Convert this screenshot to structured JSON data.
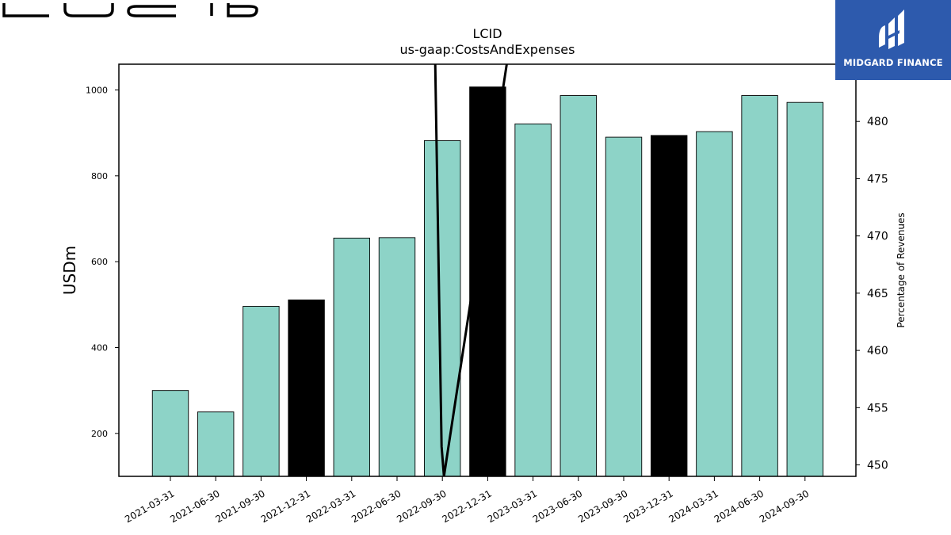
{
  "logo": {
    "company": "LUCID",
    "company_color": "#000000"
  },
  "brand": {
    "name": "MIDGARD FINANCE",
    "icon": "midgard-finance-logo-icon",
    "bg_color": "#2d5aad"
  },
  "chart_data": {
    "type": "bar",
    "title": "LCID",
    "subtitle": "us-gaap:CostsAndExpenses",
    "ylabel": "USDm",
    "y2label": "Percentage of Revenues",
    "ylim": [
      100,
      1060
    ],
    "yticks": [
      200,
      400,
      600,
      800,
      1000
    ],
    "y2lim": [
      449,
      485
    ],
    "y2ticks": [
      450,
      455,
      460,
      465,
      470,
      475,
      480
    ],
    "grid": false,
    "categories": [
      "2021-03-31",
      "2021-06-30",
      "2021-09-30",
      "2021-12-31",
      "2022-03-31",
      "2022-06-30",
      "2022-09-30",
      "2022-12-31",
      "2023-03-31",
      "2023-06-30",
      "2023-09-30",
      "2023-12-31",
      "2024-03-31",
      "2024-06-30",
      "2024-09-30"
    ],
    "values": [
      300,
      250,
      496,
      511,
      655,
      656,
      882,
      1007,
      921,
      987,
      890,
      894,
      903,
      987,
      971
    ],
    "bar_colors": [
      "#8dd3c7",
      "#8dd3c7",
      "#8dd3c7",
      "#000000",
      "#8dd3c7",
      "#8dd3c7",
      "#8dd3c7",
      "#000000",
      "#8dd3c7",
      "#8dd3c7",
      "#8dd3c7",
      "#000000",
      "#8dd3c7",
      "#8dd3c7",
      "#8dd3c7"
    ],
    "line_series": {
      "axis": "y2",
      "x": [
        "2022-09-30",
        "2022-09-30",
        "2022-09-30",
        "2022-12-31"
      ],
      "y": [
        485,
        451.6,
        449,
        485
      ],
      "color": "#000000"
    }
  }
}
